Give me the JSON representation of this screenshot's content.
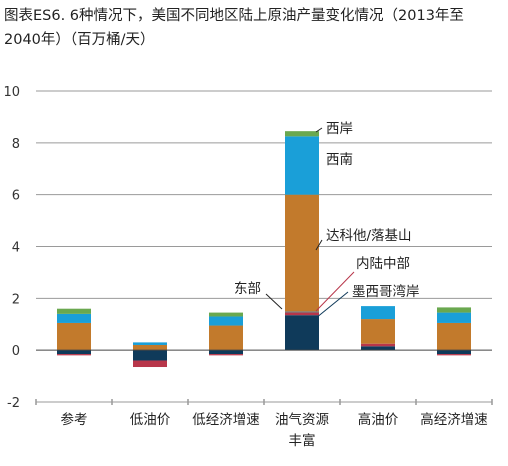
{
  "title": "图表ES6. 6种情况下，美国不同地区陆上原油产量变化情况（2013年至2040年）（百万桶/天）",
  "chart_data": {
    "type": "bar",
    "stacked": true,
    "title": "图表ES6. 6种情况下，美国不同地区陆上原油产量变化情况（2013年至2040年）（百万桶/天）",
    "ylim": [
      -2,
      10
    ],
    "yticks": [
      -2,
      0,
      2,
      4,
      6,
      8,
      10
    ],
    "grid": true,
    "categories": [
      "参考",
      "低油价",
      "低经济增速",
      "油气资源丰富",
      "高油价",
      "高经济增速"
    ],
    "category_lines": [
      [
        "参考"
      ],
      [
        "低油价"
      ],
      [
        "低经济增速"
      ],
      [
        "油气资源",
        "丰富"
      ],
      [
        "高油价"
      ],
      [
        "高经济增速"
      ]
    ],
    "series": [
      {
        "name": "墨西哥湾岸",
        "color": "#0f3a5a",
        "values": [
          -0.15,
          -0.4,
          -0.15,
          1.35,
          0.15,
          -0.15
        ]
      },
      {
        "name": "内陆中部",
        "color": "#b8364a",
        "values": [
          -0.05,
          -0.25,
          -0.05,
          0.1,
          0.1,
          -0.05
        ]
      },
      {
        "name": "东部",
        "color": "#6e6e6e",
        "values": [
          0.0,
          0.0,
          0.0,
          0.05,
          0.0,
          0.0
        ]
      },
      {
        "name": "达科他/落基山",
        "color": "#c27a2c",
        "values": [
          1.05,
          0.2,
          0.95,
          4.5,
          0.95,
          1.05
        ]
      },
      {
        "name": "西南",
        "color": "#1a9fd8",
        "values": [
          0.35,
          0.1,
          0.35,
          2.25,
          0.5,
          0.4
        ]
      },
      {
        "name": "西岸",
        "color": "#6aa84f",
        "values": [
          0.2,
          0.0,
          0.15,
          0.2,
          0.0,
          0.2
        ]
      }
    ],
    "annotations": [
      "西岸",
      "西南",
      "达科他/落基山",
      "内陆中部",
      "东部",
      "墨西哥湾岸"
    ]
  }
}
